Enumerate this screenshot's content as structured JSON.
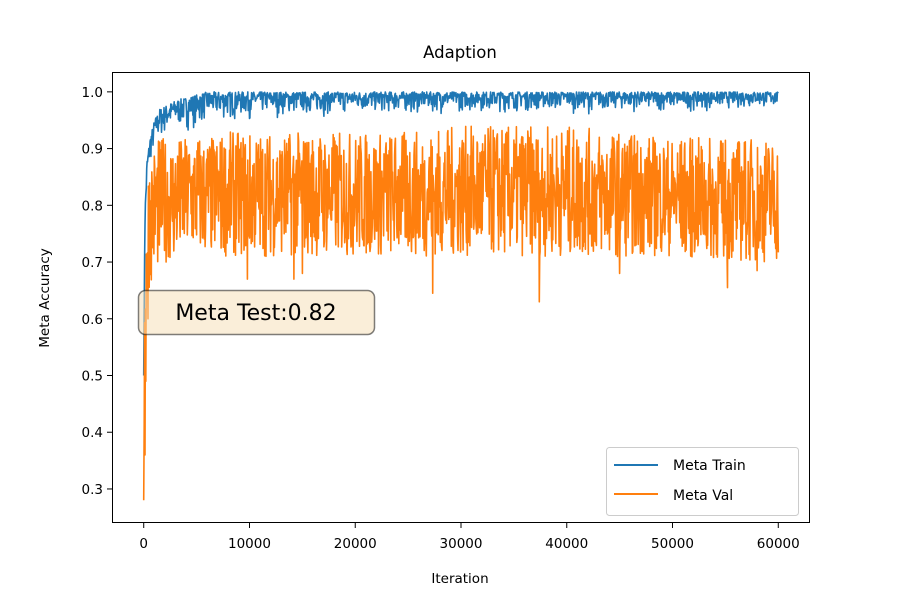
{
  "chart_data": {
    "type": "line",
    "title": "Adaption",
    "xlabel": "Iteration",
    "ylabel": "Meta Accuracy",
    "xlim": [
      -3000,
      63000
    ],
    "ylim": [
      0.24,
      1.035
    ],
    "x_ticks": [
      0,
      10000,
      20000,
      30000,
      40000,
      50000,
      60000
    ],
    "y_ticks": [
      0.3,
      0.4,
      0.5,
      0.6,
      0.7,
      0.8,
      0.9,
      1.0
    ],
    "x_tick_labels": [
      "0",
      "10000",
      "20000",
      "30000",
      "40000",
      "50000",
      "60000"
    ],
    "y_tick_labels": [
      "0.3",
      "0.4",
      "0.5",
      "0.6",
      "0.7",
      "0.8",
      "0.9",
      "1.0"
    ],
    "grid": false,
    "legend_position": "lower-right",
    "annotation": "Meta Test:0.82",
    "series": [
      {
        "name": "Meta Train",
        "color": "#1f77b4",
        "x": [
          0,
          100,
          300,
          600,
          1000,
          1500,
          2000,
          2500,
          3000,
          4000,
          5000,
          6000,
          8000,
          10000,
          12000,
          15000,
          20000,
          25000,
          30000,
          35000,
          40000,
          45000,
          50000,
          55000,
          60000
        ],
        "upper": [
          0.5,
          0.78,
          0.88,
          0.92,
          0.95,
          0.97,
          0.975,
          0.98,
          0.985,
          0.99,
          0.995,
          1.0,
          1.0,
          1.0,
          1.0,
          1.0,
          1.0,
          1.0,
          1.0,
          1.0,
          1.0,
          1.0,
          1.0,
          1.0,
          1.0
        ],
        "lower": [
          0.5,
          0.72,
          0.82,
          0.86,
          0.88,
          0.9,
          0.91,
          0.915,
          0.92,
          0.925,
          0.93,
          0.935,
          0.94,
          0.945,
          0.95,
          0.95,
          0.955,
          0.955,
          0.96,
          0.96,
          0.96,
          0.96,
          0.96,
          0.965,
          0.965
        ]
      },
      {
        "name": "Meta Val",
        "color": "#ff7f0e",
        "x": [
          0,
          100,
          300,
          600,
          1000,
          1500,
          2000,
          2500,
          3000,
          4000,
          5000,
          6000,
          8000,
          10000,
          12000,
          15000,
          20000,
          25000,
          30000,
          35000,
          40000,
          45000,
          50000,
          55000,
          60000
        ],
        "upper": [
          0.5,
          0.78,
          0.86,
          0.9,
          0.91,
          0.92,
          0.92,
          0.92,
          0.92,
          0.92,
          0.93,
          0.92,
          0.93,
          0.93,
          0.93,
          0.93,
          0.93,
          0.93,
          0.94,
          0.94,
          0.94,
          0.93,
          0.92,
          0.92,
          0.92
        ],
        "lower": [
          0.28,
          0.52,
          0.63,
          0.66,
          0.68,
          0.69,
          0.7,
          0.7,
          0.7,
          0.71,
          0.71,
          0.71,
          0.71,
          0.71,
          0.71,
          0.71,
          0.71,
          0.71,
          0.71,
          0.71,
          0.71,
          0.71,
          0.71,
          0.7,
          0.7
        ],
        "dips": [
          [
            0,
            0.28
          ],
          [
            100,
            0.36
          ],
          [
            200,
            0.49
          ],
          [
            400,
            0.6
          ],
          [
            9800,
            0.67
          ],
          [
            14200,
            0.67
          ],
          [
            15000,
            0.68
          ],
          [
            27300,
            0.645
          ],
          [
            37400,
            0.63
          ],
          [
            45000,
            0.68
          ],
          [
            55200,
            0.655
          ],
          [
            58000,
            0.685
          ]
        ]
      }
    ]
  }
}
